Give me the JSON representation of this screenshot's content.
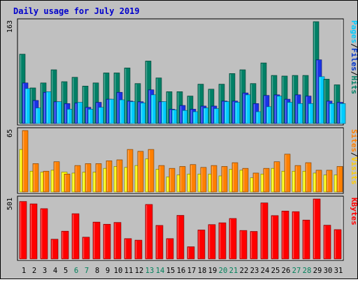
{
  "chart_data": {
    "type": "bar",
    "title": "Daily usage for July 2019",
    "categories": [
      "1",
      "2",
      "3",
      "4",
      "5",
      "6",
      "7",
      "8",
      "9",
      "10",
      "11",
      "12",
      "13",
      "14",
      "15",
      "16",
      "17",
      "18",
      "19",
      "20",
      "21",
      "22",
      "23",
      "24",
      "25",
      "26",
      "27",
      "28",
      "29",
      "30",
      "31"
    ],
    "weekend_days": [
      "6",
      "7",
      "13",
      "14",
      "20",
      "21",
      "27",
      "28"
    ],
    "panels": [
      {
        "axis_label_max": "163",
        "ylim": [
          0,
          163
        ],
        "side_label": [
          "Pages",
          "Files",
          "Hits"
        ],
        "side_label_separator": "/",
        "side_label_colors": [
          "#00ccff",
          "#0033cc",
          "#008066"
        ],
        "series": [
          {
            "name": "Hits",
            "color": "#008066",
            "values": [
              111,
              57,
              65,
              86,
              67,
              74,
              60,
              65,
              81,
              81,
              89,
              64,
              100,
              73,
              51,
              51,
              44,
              63,
              55,
              63,
              80,
              86,
              64,
              97,
              77,
              76,
              77,
              77,
              163,
              71,
              62
            ]
          },
          {
            "name": "Files",
            "color": "#1a33e6",
            "values": [
              65,
              37,
              50,
              35,
              32,
              33,
              26,
              34,
              39,
              50,
              36,
              35,
              54,
              35,
              23,
              29,
              23,
              28,
              28,
              36,
              36,
              49,
              32,
              45,
              46,
              39,
              46,
              44,
              102,
              36,
              34
            ]
          },
          {
            "name": "Pages",
            "color": "#00ccff",
            "values": [
              56,
              25,
              51,
              35,
              23,
              34,
              23,
              26,
              39,
              38,
              35,
              33,
              46,
              35,
              22,
              21,
              19,
              25,
              24,
              35,
              34,
              46,
              19,
              27,
              44,
              34,
              32,
              32,
              75,
              32,
              32
            ]
          }
        ]
      },
      {
        "axis_label_max": "65",
        "ylim": [
          0,
          65
        ],
        "side_label": [
          "Sites",
          "Visits"
        ],
        "side_label_separator": "/",
        "side_label_colors": [
          "#ff8000",
          "#ffcc00"
        ],
        "series": [
          {
            "name": "Visits",
            "color": "#ffff00",
            "values": [
              45,
              22,
              21,
              23,
              21,
              20,
              21,
              21,
              25,
              27,
              26,
              28,
              35,
              24,
              16,
              18,
              19,
              19,
              19,
              17,
              24,
              23,
              15,
              19,
              25,
              22,
              22,
              22,
              20,
              18,
              18
            ]
          },
          {
            "name": "Sites",
            "color": "#ff8000",
            "values": [
              65,
              30,
              22,
              32,
              19,
              28,
              30,
              30,
              33,
              34,
              45,
              43,
              45,
              28,
              25,
              27,
              29,
              26,
              28,
              27,
              31,
              25,
              20,
              25,
              32,
              40,
              28,
              31,
              23,
              23,
              27
            ]
          }
        ]
      },
      {
        "axis_label_max": "501",
        "ylim": [
          0,
          501
        ],
        "side_label": [
          "KBytes"
        ],
        "side_label_separator": "",
        "side_label_colors": [
          "#ff0000"
        ],
        "series": [
          {
            "name": "KBytes",
            "color": "#ff0000",
            "values": [
              480,
              460,
              420,
              165,
              232,
              378,
              182,
              308,
              290,
              305,
              170,
              157,
              455,
              280,
              170,
              364,
              102,
              242,
              287,
              302,
              338,
              238,
              230,
              468,
              362,
              400,
              395,
              325,
              501,
              282,
              245
            ]
          }
        ]
      }
    ]
  }
}
